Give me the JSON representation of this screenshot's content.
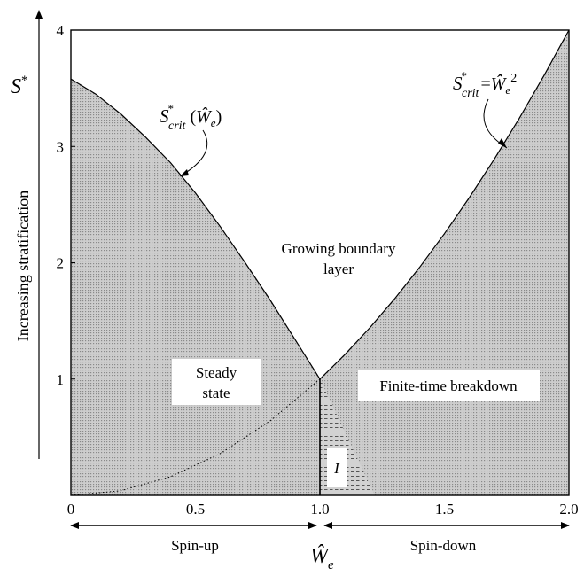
{
  "chart_data": {
    "type": "area",
    "title": "",
    "xlabel": "Ŵ",
    "xlabel_sub": "e",
    "ylabel": "Increasing stratification",
    "y_axis_symbol": "S",
    "y_axis_symbol_sup": "*",
    "xlim": [
      0,
      2
    ],
    "ylim": [
      0,
      4
    ],
    "x_ticks": [
      {
        "value": 0,
        "label": "0"
      },
      {
        "value": 0.5,
        "label": "0.5"
      },
      {
        "value": 1.0,
        "label": "1.0"
      },
      {
        "value": 1.5,
        "label": "1.5"
      },
      {
        "value": 2.0,
        "label": "2.0"
      }
    ],
    "y_ticks": [
      {
        "value": 1,
        "label": "1"
      },
      {
        "value": 2,
        "label": "2"
      },
      {
        "value": 3,
        "label": "3"
      },
      {
        "value": 4,
        "label": "4"
      }
    ],
    "grid": false,
    "series": [
      {
        "name": "critical curve left",
        "x": [
          0,
          0.1,
          0.2,
          0.3,
          0.4,
          0.5,
          0.6,
          0.7,
          0.8,
          0.9,
          1.0
        ],
        "y": [
          3.58,
          3.45,
          3.28,
          3.08,
          2.86,
          2.6,
          2.31,
          2.0,
          1.68,
          1.34,
          1.0
        ]
      },
      {
        "name": "critical curve right",
        "x": [
          1.0,
          1.1,
          1.2,
          1.3,
          1.4,
          1.5,
          1.6,
          1.7,
          1.8,
          1.9,
          2.0
        ],
        "y": [
          1.0,
          1.21,
          1.44,
          1.69,
          1.96,
          2.25,
          2.56,
          2.89,
          3.24,
          3.61,
          4.0
        ]
      },
      {
        "name": "dotted curve",
        "x": [
          0,
          0.2,
          0.4,
          0.6,
          0.8,
          1.0
        ],
        "y": [
          0,
          0.04,
          0.16,
          0.36,
          0.64,
          1.0
        ]
      },
      {
        "name": "region I boundary",
        "x": [
          1.0,
          1.22
        ],
        "y": [
          1.0,
          0
        ]
      }
    ],
    "annotations": {
      "left_curve_label": {
        "main": "S",
        "sup": "*",
        "sub": "crit",
        "arg_open": "(",
        "arg": "Ŵ",
        "arg_sub": "e",
        "arg_close": ")"
      },
      "right_curve_label": {
        "main": "S",
        "sup": "*",
        "sub": "crit",
        "eq": "=",
        "rhs": "Ŵ",
        "rhs_sub": "e",
        "rhs_sup": "2"
      },
      "regions": {
        "growing_line1": "Growing boundary",
        "growing_line2": "layer",
        "steady_line1": "Steady",
        "steady_line2": "state",
        "breakdown": "Finite-time breakdown",
        "region_i": "I"
      },
      "direction_left": "Spin-up",
      "direction_right": "Spin-down"
    },
    "colors": {
      "shade_fill": "#c9c9c9",
      "shade_dots": "#7a7a7a",
      "line": "#000000",
      "label_box": "#ffffff"
    }
  }
}
